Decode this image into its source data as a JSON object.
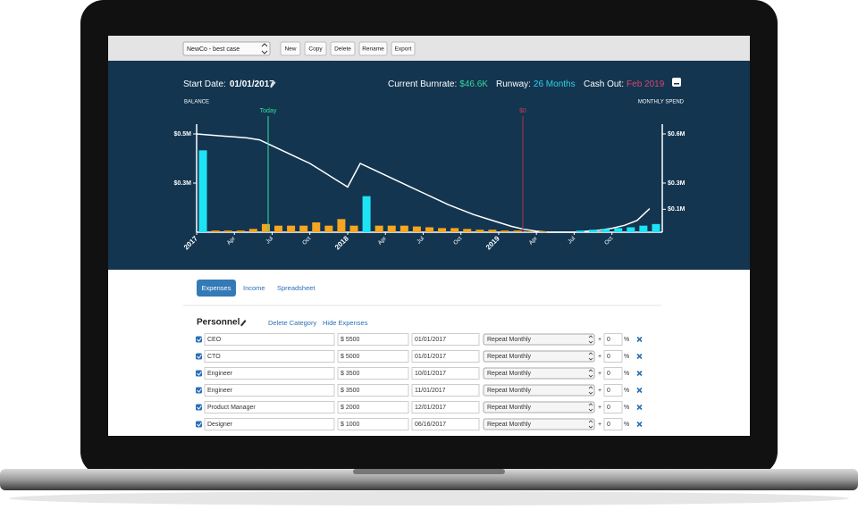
{
  "toolbar": {
    "scenario": "NewCo - best case",
    "buttons": [
      "New",
      "Copy",
      "Delete",
      "Rename",
      "Export"
    ]
  },
  "header": {
    "start_label": "Start Date:",
    "start_date": "01/01/2017",
    "burnrate_label": "Current Burnrate:",
    "burnrate": "$46.6K",
    "runway_label": "Runway:",
    "runway": "26 Months",
    "cashout_label": "Cash Out:",
    "cashout": "Feb 2019"
  },
  "chart_data": {
    "type": "bar",
    "y_label": "BALANCE",
    "y2_label": "MONTHLY SPEND",
    "categories": [
      "2017",
      null,
      null,
      "Apr",
      null,
      null,
      "Jul",
      null,
      null,
      "Oct",
      null,
      null,
      "2018",
      null,
      null,
      "Apr",
      null,
      null,
      "Jul",
      null,
      null,
      "Oct",
      null,
      null,
      "2019",
      null,
      null,
      "Apr",
      null,
      null,
      "Jul",
      null,
      null,
      "Oct",
      null,
      null,
      null
    ],
    "ylim": [
      0,
      0.55
    ],
    "yticks": [
      {
        "value": 0.5,
        "label": "$0.5M"
      },
      {
        "value": 0.25,
        "label": "$0.3M"
      }
    ],
    "y2lim": [
      0,
      0.66
    ],
    "y2ticks": [
      {
        "value": 0.6,
        "label": "$0.6M"
      },
      {
        "value": 0.3,
        "label": "$0.3M"
      },
      {
        "value": 0.14,
        "label": "$0.1M"
      }
    ],
    "series": [
      {
        "type": "line",
        "color": "#ffffff",
        "values": [
          0.5,
          0.495,
          0.49,
          0.485,
          0.48,
          0.47,
          0.44,
          0.41,
          0.38,
          0.35,
          0.31,
          0.27,
          0.23,
          0.35,
          0.32,
          0.29,
          0.26,
          0.23,
          0.2,
          0.17,
          0.14,
          0.115,
          0.09,
          0.07,
          0.05,
          0.03,
          0.015,
          0.005,
          0,
          0,
          0,
          0.005,
          0.01,
          0.02,
          0.035,
          0.06,
          0.12
        ]
      },
      {
        "color": "#f5a623",
        "axis": "y2",
        "values": [
          null,
          0.01,
          0.01,
          0.01,
          0.02,
          0.05,
          0.04,
          0.04,
          0.04,
          0.06,
          0.04,
          0.08,
          0.04,
          null,
          0.04,
          0.04,
          0.04,
          0.035,
          0.03,
          0.025,
          0.025,
          0.02,
          0.015,
          0.015,
          0.01,
          0.01,
          0.005,
          0.005,
          null,
          null,
          null,
          null,
          null,
          null,
          null,
          null,
          null
        ]
      },
      {
        "color": "#1ee3f5",
        "axis": "y2",
        "values": [
          0.5,
          null,
          null,
          null,
          null,
          null,
          null,
          null,
          null,
          null,
          null,
          null,
          null,
          0.22,
          null,
          null,
          null,
          null,
          null,
          null,
          null,
          null,
          null,
          null,
          null,
          null,
          null,
          null,
          null,
          null,
          0.01,
          0.015,
          0.02,
          0.025,
          0.03,
          0.04,
          0.05
        ]
      }
    ],
    "annotations": [
      "Today",
      "$0"
    ]
  },
  "tabs": [
    "Expenses",
    "Income",
    "Spreadsheet"
  ],
  "category": {
    "title": "Personnel",
    "actions": [
      "Delete Category",
      "Hide Expenses"
    ]
  },
  "expenses": {
    "rows": [
      {
        "name": "CEO",
        "amount": "$ 5500",
        "date": "01/01/2017",
        "repeat": "Repeat Monthly",
        "plus": "+",
        "growth": "0",
        "unit": "%"
      },
      {
        "name": "CTO",
        "amount": "$ 5000",
        "date": "01/01/2017",
        "repeat": "Repeat Monthly",
        "plus": "+",
        "growth": "0",
        "unit": "%"
      },
      {
        "name": "Engineer",
        "amount": "$ 3500",
        "date": "10/01/2017",
        "repeat": "Repeat Monthly",
        "plus": "+",
        "growth": "0",
        "unit": "%"
      },
      {
        "name": "Engineer",
        "amount": "$ 3500",
        "date": "11/01/2017",
        "repeat": "Repeat Monthly",
        "plus": "+",
        "growth": "0",
        "unit": "%"
      },
      {
        "name": "Product Manager",
        "amount": "$ 2000",
        "date": "12/01/2017",
        "repeat": "Repeat Monthly",
        "plus": "+",
        "growth": "0",
        "unit": "%"
      },
      {
        "name": "Designer",
        "amount": "$ 1000",
        "date": "06/16/2017",
        "repeat": "Repeat Monthly",
        "plus": "+",
        "growth": "0",
        "unit": "%"
      }
    ]
  }
}
